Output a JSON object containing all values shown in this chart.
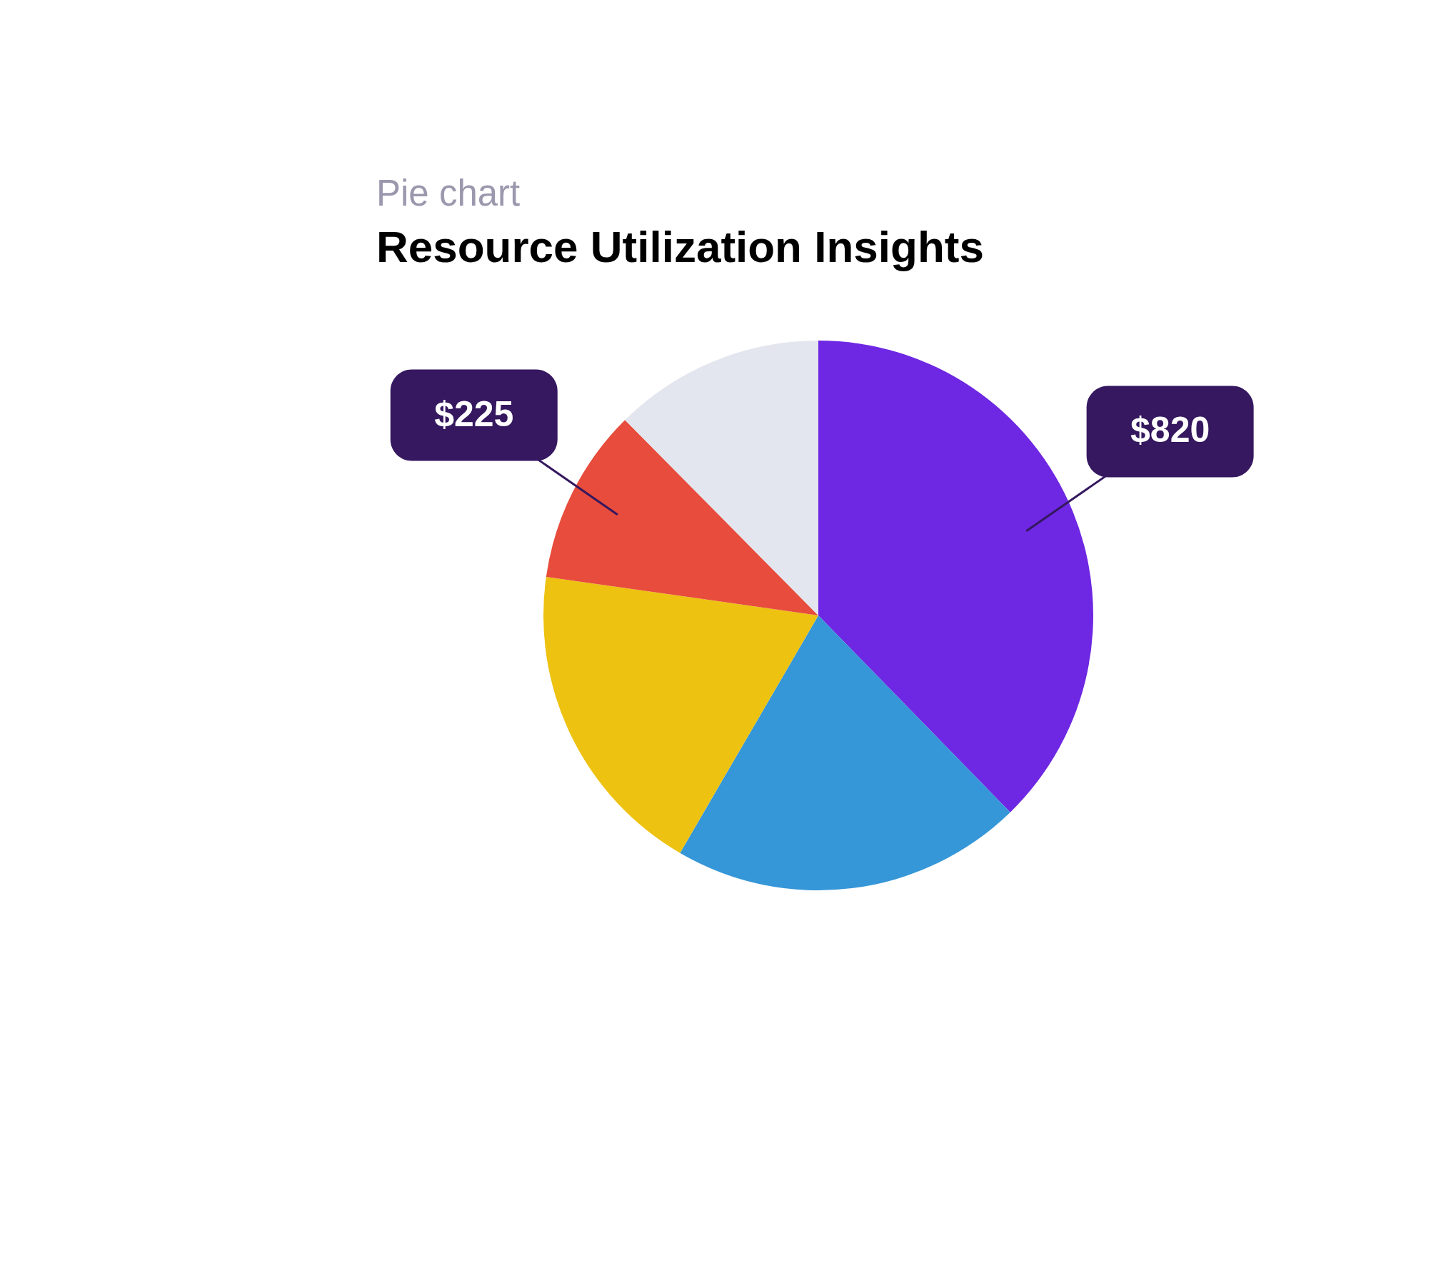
{
  "chart_data": {
    "type": "pie",
    "subtitle": "Pie chart",
    "title": "Resource Utilization Insights",
    "categories": [
      null,
      null,
      null,
      null,
      null
    ],
    "values": [
      820,
      450,
      410,
      225,
      270
    ],
    "colors": [
      "#6e27e2",
      "#3596d8",
      "#edc211",
      "#e74c3c",
      "#e3e6ee"
    ],
    "value_labels": [
      "$820",
      null,
      null,
      "$225",
      null
    ]
  }
}
